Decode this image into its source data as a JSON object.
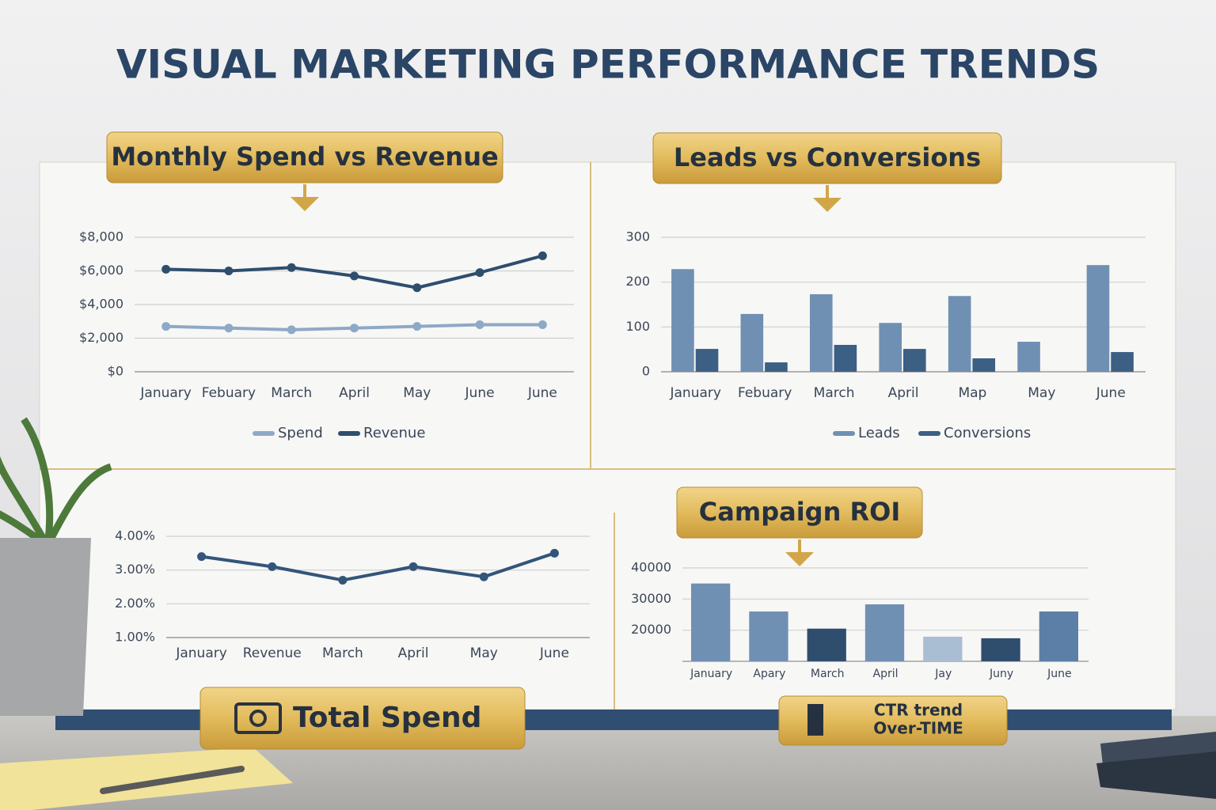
{
  "title": "VISUAL MARKETING PERFORMANCE TRENDS",
  "badges": {
    "total_spend": "Total Spend",
    "ctr": [
      "CTR trend",
      "Over-TIME"
    ]
  },
  "chart_data": [
    {
      "type": "line",
      "title": "Monthly Spend vs Revenue",
      "categories": [
        "January",
        "Febuary",
        "March",
        "April",
        "May",
        "June",
        "June"
      ],
      "series": [
        {
          "name": "Spend",
          "color": "#8ea9c6",
          "values": [
            2700,
            2600,
            2500,
            2600,
            2700,
            2800,
            2800
          ]
        },
        {
          "name": "Revenue",
          "color": "#2e4e6e",
          "values": [
            6100,
            6000,
            6200,
            5700,
            5000,
            5900,
            6900
          ]
        }
      ],
      "ylim": [
        0,
        8000
      ],
      "yticks": [
        {
          "value": 0,
          "label": "$0"
        },
        {
          "value": 2000,
          "label": "$2,000"
        },
        {
          "value": 4000,
          "label": "$4,000"
        },
        {
          "value": 6000,
          "label": "$6,000"
        },
        {
          "value": 8000,
          "label": "$8,000"
        }
      ],
      "grid": true,
      "legend": "bottom"
    },
    {
      "type": "bar",
      "title": "Leads vs Conversions",
      "categories": [
        "January",
        "Febuary",
        "March",
        "April",
        "Map",
        "May",
        "June"
      ],
      "series": [
        {
          "name": "Leads",
          "color": "#6f90b3",
          "values": [
            229,
            129,
            173,
            109,
            169,
            67,
            238
          ]
        },
        {
          "name": "Conversions",
          "color": "#3c5f84",
          "values": [
            51,
            21,
            60,
            51,
            30,
            null,
            44
          ]
        }
      ],
      "ylim": [
        0,
        300
      ],
      "yticks": [
        0,
        100,
        200,
        300
      ],
      "grid": true,
      "legend": "bottom"
    },
    {
      "type": "line",
      "categories": [
        "January",
        "Revenue",
        "March",
        "April",
        "May",
        "June"
      ],
      "series": [
        {
          "color": "#33557a",
          "values": [
            3.4,
            3.1,
            2.7,
            3.1,
            2.8,
            3.5
          ]
        }
      ],
      "ylim": [
        1,
        4
      ],
      "yticks": [
        {
          "value": 1,
          "label": "1.00%"
        },
        {
          "value": 2,
          "label": "2.00%"
        },
        {
          "value": 3,
          "label": "3.00%"
        },
        {
          "value": 4,
          "label": "4.00%"
        }
      ],
      "grid": true
    },
    {
      "type": "bar",
      "title": "Campaign ROI",
      "categories": [
        "January",
        "Apary",
        "March",
        "April",
        "Jay",
        "Juny",
        "June"
      ],
      "series": [
        {
          "color": "#5b7fa6",
          "values": [
            35000,
            26000,
            20500,
            28300,
            17900,
            17400,
            26000
          ]
        }
      ],
      "colors": [
        "#6f90b3",
        "#6f90b3",
        "#2f4e6e",
        "#6f90b3",
        "#a9bdd3",
        "#2f4e6e",
        "#5b7fa6"
      ],
      "ylim": [
        10000,
        40000
      ],
      "yticks": [
        20000,
        30000,
        40000
      ],
      "grid": true
    }
  ]
}
